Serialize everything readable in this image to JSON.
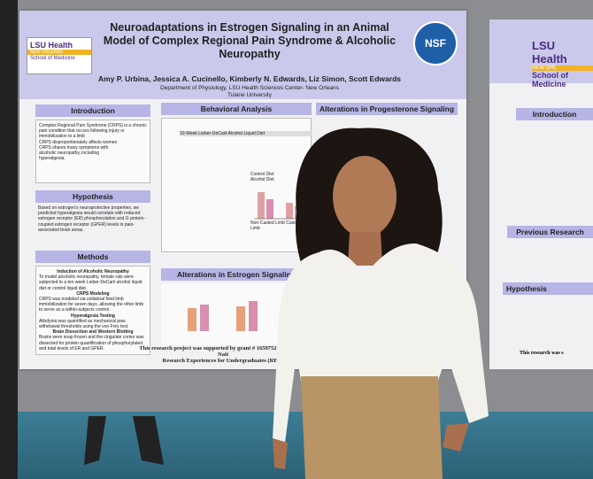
{
  "poster": {
    "logo": {
      "brand": "LSU Health",
      "city": "NEW ORLEANS",
      "school": "School of Medicine"
    },
    "badge": "NSF",
    "title": "Neuroadaptations in Estrogen Signaling in an Animal Model of Complex Regional Pain Syndrome & Alcoholic Neuropathy",
    "authors": "Amy P. Urbina, Jessica A. Cucinello, Kimberly N. Edwards, Liz Simon, Scott Edwards",
    "affiliation": "Department of Physiology, LSU Health Sciences Center- New Orleans",
    "university": "Tulane University",
    "introduction": {
      "heading": "Introduction",
      "items": [
        "Complex Regional Pain Syndrome (CRPS) is a chronic pain condition that occurs following injury or immobilization to a limb",
        "CRPS disproportionately affects women",
        "CRPS shares many symptoms with alcoholic neuropathy, including hyperalgesia."
      ]
    },
    "hypothesis": {
      "heading": "Hypothesis",
      "text": "Based on estrogen's neuroprotective properties, we predicted hyperalgesia would correlate with reduced estrogen receptor (ER) phosphorylation and G protein-coupled estrogen receptor (GPER) levels in pain-associated brain areas."
    },
    "methods": {
      "heading": "Methods",
      "blocks": [
        {
          "subheading": "Induction of Alcoholic Neuropathy",
          "text": "To model alcoholic neuropathy, female rats were subjected to a ten week Lieber-DeCarli alcohol liquid diet or control liquid diet."
        },
        {
          "subheading": "CRPS Modeling",
          "text": "CRPS was modeled via unilateral hind limb immobilization for seven days, allowing the other limb to serve as a within-subjects control."
        },
        {
          "subheading": "Hyperalgesia Testing",
          "text": "Allodynia was quantified as mechanical paw withdrawal thresholds using the von Frey test."
        },
        {
          "subheading": "Brain Dissection and Western Blotting",
          "text": "Brains were snap frozen and the cingulate cortex was dissected for protein quantification of phosphorylated and total levels of ER and GPER."
        }
      ]
    },
    "behavioral": {
      "heading": "Behavioral Analysis",
      "timeline": "10-Week Lieber-DeCarli Alcohol Liquid Diet",
      "legend": [
        "Control Diet",
        "Alcohol Diet"
      ],
      "groups": [
        "Non-Casted Limb",
        "Casted Limb"
      ]
    },
    "estrogen": {
      "heading": "Alterations in Estrogen Signaling"
    },
    "progesterone": {
      "heading": "Alterations in Progesterone Signaling"
    },
    "footer": [
      "This research project was supported by grant # 1659752 through the Nati",
      "Research Experiences for Undergraduates (REU)"
    ]
  },
  "side_poster": {
    "brand": "LSU Health",
    "city": "NEW ORL",
    "school": "School of Medicine",
    "headings": [
      "Introduction",
      "Previous Research",
      "Hypothesis"
    ],
    "footer": "This research was s"
  }
}
